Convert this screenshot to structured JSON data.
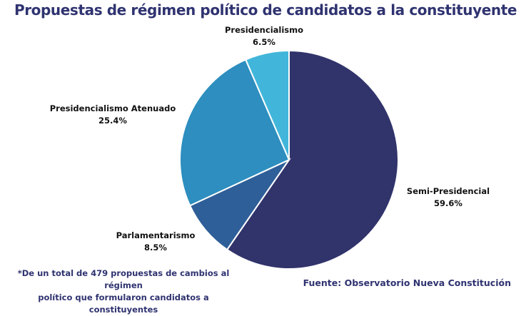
{
  "title": "Propuestas de régimen político de candidatos a la constituyente",
  "colors": {
    "title": "#2f3370",
    "note": "#2f3370",
    "source": "#2f3370"
  },
  "chart_data": {
    "type": "pie",
    "title": "Propuestas de régimen político de candidatos a la constituyente",
    "slices": [
      {
        "label": "Semi-Presidencial",
        "value": 59.6,
        "value_label": "59.6%",
        "color": "#31336b"
      },
      {
        "label": "Parlamentarismo",
        "value": 8.5,
        "value_label": "8.5%",
        "color": "#2f5f99"
      },
      {
        "label": "Presidencialismo Atenuado",
        "value": 25.4,
        "value_label": "25.4%",
        "color": "#2d8ebf"
      },
      {
        "label": "Presidencialismo",
        "value": 6.5,
        "value_label": "6.5%",
        "color": "#41b6da"
      }
    ],
    "start": "12 o'clock",
    "direction": "clockwise"
  },
  "footnote": {
    "line1": "*De un total de 479 propuestas de cambios al régimen",
    "line2": "político que formularon candidatos a constituyentes"
  },
  "source": "Fuente: Observatorio Nueva Constitución"
}
